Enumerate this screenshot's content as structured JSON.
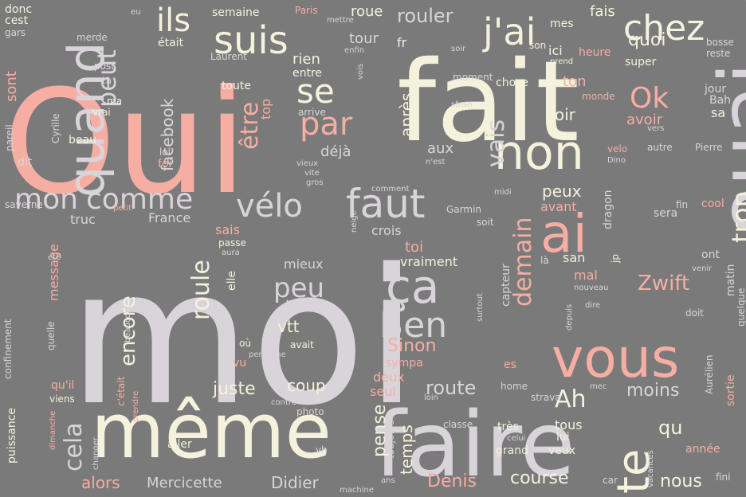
{
  "wordcloud": {
    "palette": {
      "background": "#7a7a7a",
      "pink": "#f6aea3",
      "cream": "#f4f1dc",
      "lavender": "#d9d4da",
      "light_pink": "#e9c4c0"
    },
    "words": [
      {
        "text": "Oui",
        "color": "pink",
        "vertical": false
      },
      {
        "text": "moi",
        "color": "lavender",
        "vertical": false
      },
      {
        "text": "fait",
        "color": "cream",
        "vertical": false
      },
      {
        "text": "va",
        "color": "pink",
        "vertical": true
      },
      {
        "text": "faire",
        "color": "lavender",
        "vertical": false
      },
      {
        "text": "même",
        "color": "cream",
        "vertical": false
      },
      {
        "text": "ouai",
        "color": "lavender",
        "vertical": true
      },
      {
        "text": "vous",
        "color": "pink",
        "vertical": false
      },
      {
        "text": "quand",
        "color": "lavender",
        "vertical": true
      },
      {
        "text": "non",
        "color": "cream",
        "vertical": false
      },
      {
        "text": "faut",
        "color": "lavender",
        "vertical": false
      },
      {
        "text": "ça",
        "color": "lavender",
        "vertical": false
      },
      {
        "text": "ai",
        "color": "pink",
        "vertical": false
      },
      {
        "text": "suis",
        "color": "cream",
        "vertical": false
      },
      {
        "text": "j'ai",
        "color": "cream",
        "vertical": false
      },
      {
        "text": "chez",
        "color": "cream",
        "vertical": false
      },
      {
        "text": "te",
        "color": "cream",
        "vertical": true
      },
      {
        "text": "Ben",
        "color": "lavender",
        "vertical": false
      },
      {
        "text": "mon",
        "color": "lavender",
        "vertical": false
      },
      {
        "text": "comme",
        "color": "lavender",
        "vertical": false
      },
      {
        "text": "vélo",
        "color": "lavender",
        "vertical": false
      },
      {
        "text": "peu",
        "color": "lavender",
        "vertical": false
      },
      {
        "text": "se",
        "color": "cream",
        "vertical": false
      },
      {
        "text": "par",
        "color": "pink",
        "vertical": false
      },
      {
        "text": "Ok",
        "color": "pink",
        "vertical": false
      },
      {
        "text": "ils",
        "color": "cream",
        "vertical": false
      },
      {
        "text": "trop",
        "color": "cream",
        "vertical": true
      },
      {
        "text": "peut",
        "color": "lavender",
        "vertical": true
      },
      {
        "text": "être",
        "color": "pink",
        "vertical": true
      },
      {
        "text": "vais",
        "color": "lavender",
        "vertical": true
      },
      {
        "text": "demain",
        "color": "pink",
        "vertical": true
      },
      {
        "text": "cela",
        "color": "lavender",
        "vertical": true
      },
      {
        "text": "encore",
        "color": "cream",
        "vertical": true
      },
      {
        "text": "roule",
        "color": "cream",
        "vertical": true
      },
      {
        "text": "Ah",
        "color": "cream",
        "vertical": false
      },
      {
        "text": "rouler",
        "color": "lavender",
        "vertical": false
      },
      {
        "text": "Zwift",
        "color": "pink",
        "vertical": false
      },
      {
        "text": "Sinon",
        "color": "pink",
        "vertical": false
      },
      {
        "text": "route",
        "color": "lavender",
        "vertical": false
      },
      {
        "text": "course",
        "color": "cream",
        "vertical": false
      },
      {
        "text": "Denis",
        "color": "pink",
        "vertical": false
      },
      {
        "text": "Didier",
        "color": "lavender",
        "vertical": false
      },
      {
        "text": "Mercicette",
        "color": "lavender",
        "vertical": false
      },
      {
        "text": "alors",
        "color": "pink",
        "vertical": false
      },
      {
        "text": "juste",
        "color": "cream",
        "vertical": false
      },
      {
        "text": "coup",
        "color": "cream",
        "vertical": false
      },
      {
        "text": "moins",
        "color": "lavender",
        "vertical": false
      },
      {
        "text": "nous",
        "color": "cream",
        "vertical": false
      },
      {
        "text": "qu",
        "color": "cream",
        "vertical": false
      },
      {
        "text": "pense",
        "color": "cream",
        "vertical": true
      },
      {
        "text": "temps",
        "color": "cream",
        "vertical": true
      },
      {
        "text": "vtt",
        "color": "cream",
        "vertical": false
      },
      {
        "text": "bonne",
        "color": "lavender",
        "vertical": false
      },
      {
        "text": "mieux",
        "color": "lavender",
        "vertical": false
      },
      {
        "text": "vraiment",
        "color": "cream",
        "vertical": false
      },
      {
        "text": "toi",
        "color": "pink",
        "vertical": false
      },
      {
        "text": "crois",
        "color": "lavender",
        "vertical": false
      },
      {
        "text": "peux",
        "color": "cream",
        "vertical": false
      },
      {
        "text": "avant",
        "color": "pink",
        "vertical": false
      },
      {
        "text": "voir",
        "color": "cream",
        "vertical": false
      },
      {
        "text": "avoir",
        "color": "pink",
        "vertical": false
      },
      {
        "text": "ton",
        "color": "pink",
        "vertical": false
      },
      {
        "text": "quoi",
        "color": "cream",
        "vertical": false
      },
      {
        "text": "fais",
        "color": "cream",
        "vertical": false
      },
      {
        "text": "tour",
        "color": "lavender",
        "vertical": false
      },
      {
        "text": "rien",
        "color": "cream",
        "vertical": false
      },
      {
        "text": "après",
        "color": "cream",
        "vertical": true
      },
      {
        "text": "aux",
        "color": "lavender",
        "vertical": false
      },
      {
        "text": "déjà",
        "color": "lavender",
        "vertical": false
      },
      {
        "text": "facebook",
        "color": "lavender",
        "vertical": true
      },
      {
        "text": "France",
        "color": "lavender",
        "vertical": false
      },
      {
        "text": "truc",
        "color": "lavender",
        "vertical": false
      },
      {
        "text": "sais",
        "color": "pink",
        "vertical": false
      },
      {
        "text": "message",
        "color": "pink",
        "vertical": true
      },
      {
        "text": "sont",
        "color": "pink",
        "vertical": true
      },
      {
        "text": "top",
        "color": "pink",
        "vertical": true
      },
      {
        "text": "roue",
        "color": "cream",
        "vertical": false
      },
      {
        "text": "semaine",
        "color": "cream",
        "vertical": false
      },
      {
        "text": "était",
        "color": "cream",
        "vertical": false
      },
      {
        "text": "Laurent",
        "color": "lavender",
        "vertical": false
      },
      {
        "text": "toute",
        "color": "cream",
        "vertical": false
      },
      {
        "text": "entre",
        "color": "cream",
        "vertical": false
      },
      {
        "text": "fr",
        "color": "cream",
        "vertical": false
      },
      {
        "text": "ici",
        "color": "cream",
        "vertical": false
      },
      {
        "text": "mes",
        "color": "cream",
        "vertical": false
      },
      {
        "text": "son",
        "color": "cream",
        "vertical": false
      },
      {
        "text": "heure",
        "color": "pink",
        "vertical": false
      },
      {
        "text": "super",
        "color": "cream",
        "vertical": false
      },
      {
        "text": "bosse",
        "color": "lavender",
        "vertical": false
      },
      {
        "text": "reste",
        "color": "lavender",
        "vertical": false
      },
      {
        "text": "jour",
        "color": "lavender",
        "vertical": false
      },
      {
        "text": "Bah",
        "color": "lavender",
        "vertical": false
      },
      {
        "text": "sa",
        "color": "cream",
        "vertical": false
      },
      {
        "text": "chose",
        "color": "cream",
        "vertical": false
      },
      {
        "text": "monde",
        "color": "pink",
        "vertical": false
      },
      {
        "text": "moment",
        "color": "lavender",
        "vertical": false
      },
      {
        "text": "prend",
        "color": "cream",
        "vertical": false
      },
      {
        "text": "soir",
        "color": "lavender",
        "vertical": false
      },
      {
        "text": "vers",
        "color": "lavender",
        "vertical": false
      },
      {
        "text": "Pierre",
        "color": "lavender",
        "vertical": false
      },
      {
        "text": "autre",
        "color": "lavender",
        "vertical": false
      },
      {
        "text": "velo",
        "color": "pink",
        "vertical": false
      },
      {
        "text": "Dino",
        "color": "lavender",
        "vertical": false
      },
      {
        "text": "fin",
        "color": "lavender",
        "vertical": false
      },
      {
        "text": "cool",
        "color": "pink",
        "vertical": false
      },
      {
        "text": "sera",
        "color": "lavender",
        "vertical": false
      },
      {
        "text": "san",
        "color": "cream",
        "vertical": false
      },
      {
        "text": "là",
        "color": "lavender",
        "vertical": false
      },
      {
        "text": "ont",
        "color": "lavender",
        "vertical": false
      },
      {
        "text": "jp",
        "color": "cream",
        "vertical": true
      },
      {
        "text": "matin",
        "color": "lavender",
        "vertical": true
      },
      {
        "text": "mal",
        "color": "pink",
        "vertical": false
      },
      {
        "text": "dragon",
        "color": "lavender",
        "vertical": true
      },
      {
        "text": "capteur",
        "color": "lavender",
        "vertical": true
      },
      {
        "text": "soit",
        "color": "lavender",
        "vertical": false
      },
      {
        "text": "Garmin",
        "color": "lavender",
        "vertical": false
      },
      {
        "text": "midi",
        "color": "lavender",
        "vertical": false
      },
      {
        "text": "venir",
        "color": "lavender",
        "vertical": false
      },
      {
        "text": "doit",
        "color": "lavender",
        "vertical": false
      },
      {
        "text": "quelque",
        "color": "lavender",
        "vertical": true
      },
      {
        "text": "sortie",
        "color": "pink",
        "vertical": true
      },
      {
        "text": "Aurélien",
        "color": "lavender",
        "vertical": true
      },
      {
        "text": "mec",
        "color": "lavender",
        "vertical": false
      },
      {
        "text": "strava",
        "color": "lavender",
        "vertical": false
      },
      {
        "text": "home",
        "color": "lavender",
        "vertical": false
      },
      {
        "text": "très",
        "color": "cream",
        "vertical": false
      },
      {
        "text": "tous",
        "color": "cream",
        "vertical": false
      },
      {
        "text": "lui",
        "color": "cream",
        "vertical": false
      },
      {
        "text": "celui",
        "color": "lavender",
        "vertical": false
      },
      {
        "text": "grand",
        "color": "cream",
        "vertical": false
      },
      {
        "text": "veux",
        "color": "cream",
        "vertical": false
      },
      {
        "text": "année",
        "color": "pink",
        "vertical": false
      },
      {
        "text": "vacances",
        "color": "lavender",
        "vertical": true
      },
      {
        "text": "fini",
        "color": "lavender",
        "vertical": false
      },
      {
        "text": "car",
        "color": "lavender",
        "vertical": false
      },
      {
        "text": "classe",
        "color": "lavender",
        "vertical": false
      },
      {
        "text": "loin",
        "color": "lavender",
        "vertical": false
      },
      {
        "text": "toujours",
        "color": "lavender",
        "vertical": true
      },
      {
        "text": "ans",
        "color": "lavender",
        "vertical": false
      },
      {
        "text": "machine",
        "color": "lavender",
        "vertical": false
      },
      {
        "text": "deux",
        "color": "pink",
        "vertical": false
      },
      {
        "text": "seul",
        "color": "pink",
        "vertical": false
      },
      {
        "text": "sympa",
        "color": "pink",
        "vertical": false
      },
      {
        "text": "photo",
        "color": "lavender",
        "vertical": false
      },
      {
        "text": "contre",
        "color": "lavender",
        "vertical": false
      },
      {
        "text": "es",
        "color": "pink",
        "vertical": false
      },
      {
        "text": "nouveau",
        "color": "lavender",
        "vertical": false
      },
      {
        "text": "dire",
        "color": "lavender",
        "vertical": false
      },
      {
        "text": "depuis",
        "color": "lavender",
        "vertical": true
      },
      {
        "text": "surtout",
        "color": "lavender",
        "vertical": true
      },
      {
        "text": "avait",
        "color": "cream",
        "vertical": false
      },
      {
        "text": "vu",
        "color": "pink",
        "vertical": false
      },
      {
        "text": "personne",
        "color": "lavender",
        "vertical": false
      },
      {
        "text": "où",
        "color": "cream",
        "vertical": false
      },
      {
        "text": "elle",
        "color": "cream",
        "vertical": true
      },
      {
        "text": "passe",
        "color": "cream",
        "vertical": false
      },
      {
        "text": "aura",
        "color": "lavender",
        "vertical": false
      },
      {
        "text": "qu'il",
        "color": "pink",
        "vertical": false
      },
      {
        "text": "viens",
        "color": "cream",
        "vertical": false
      },
      {
        "text": "c'était",
        "color": "pink",
        "vertical": true
      },
      {
        "text": "prendre",
        "color": "pink",
        "vertical": true
      },
      {
        "text": "beaucoup",
        "color": "lavender",
        "vertical": true
      },
      {
        "text": "quelle",
        "color": "lavender",
        "vertical": true
      },
      {
        "text": "été",
        "color": "lavender",
        "vertical": false
      },
      {
        "text": "aller",
        "color": "cream",
        "vertical": false
      },
      {
        "text": "vh",
        "color": "lavender",
        "vertical": false
      },
      {
        "text": "changer",
        "color": "lavender",
        "vertical": true
      },
      {
        "text": "dimanche",
        "color": "pink",
        "vertical": true
      },
      {
        "text": "puissance",
        "color": "cream",
        "vertical": true
      },
      {
        "text": "confinement",
        "color": "lavender",
        "vertical": true
      },
      {
        "text": "saverne",
        "color": "lavender",
        "vertical": false
      },
      {
        "text": "petit",
        "color": "pink",
        "vertical": false
      },
      {
        "text": "dit",
        "color": "lavender",
        "vertical": false
      },
      {
        "text": "pareil",
        "color": "lavender",
        "vertical": true
      },
      {
        "text": "foi",
        "color": "pink",
        "vertical": false
      },
      {
        "text": "lol",
        "color": "lavender",
        "vertical": false
      },
      {
        "text": "beau",
        "color": "cream",
        "vertical": false
      },
      {
        "text": "vrai",
        "color": "cream",
        "vertical": false
      },
      {
        "text": "ma",
        "color": "cream",
        "vertical": false
      },
      {
        "text": "ta",
        "color": "lavender",
        "vertical": false
      },
      {
        "text": "post",
        "color": "lavender",
        "vertical": false
      },
      {
        "text": "Cyrille",
        "color": "lavender",
        "vertical": true
      },
      {
        "text": "merde",
        "color": "lavender",
        "vertical": false
      },
      {
        "text": "donc",
        "color": "cream",
        "vertical": false
      },
      {
        "text": "cest",
        "color": "cream",
        "vertical": false
      },
      {
        "text": "gars",
        "color": "lavender",
        "vertical": false
      },
      {
        "text": "eu",
        "color": "lavender",
        "vertical": false
      },
      {
        "text": "Paris",
        "color": "pink",
        "vertical": false
      },
      {
        "text": "mettre",
        "color": "lavender",
        "vertical": false
      },
      {
        "text": "enfin",
        "color": "lavender",
        "vertical": false
      },
      {
        "text": "vois",
        "color": "lavender",
        "vertical": true
      },
      {
        "text": "arrive",
        "color": "lavender",
        "vertical": false
      },
      {
        "text": "sfnsn",
        "color": "lavender",
        "vertical": false
      },
      {
        "text": "vieux",
        "color": "lavender",
        "vertical": false
      },
      {
        "text": "vite",
        "color": "lavender",
        "vertical": false
      },
      {
        "text": "gros",
        "color": "lavender",
        "vertical": false
      },
      {
        "text": "neige",
        "color": "lavender",
        "vertical": true
      },
      {
        "text": "comment",
        "color": "lavender",
        "vertical": false
      },
      {
        "text": "n'est",
        "color": "lavender",
        "vertical": false
      }
    ]
  }
}
